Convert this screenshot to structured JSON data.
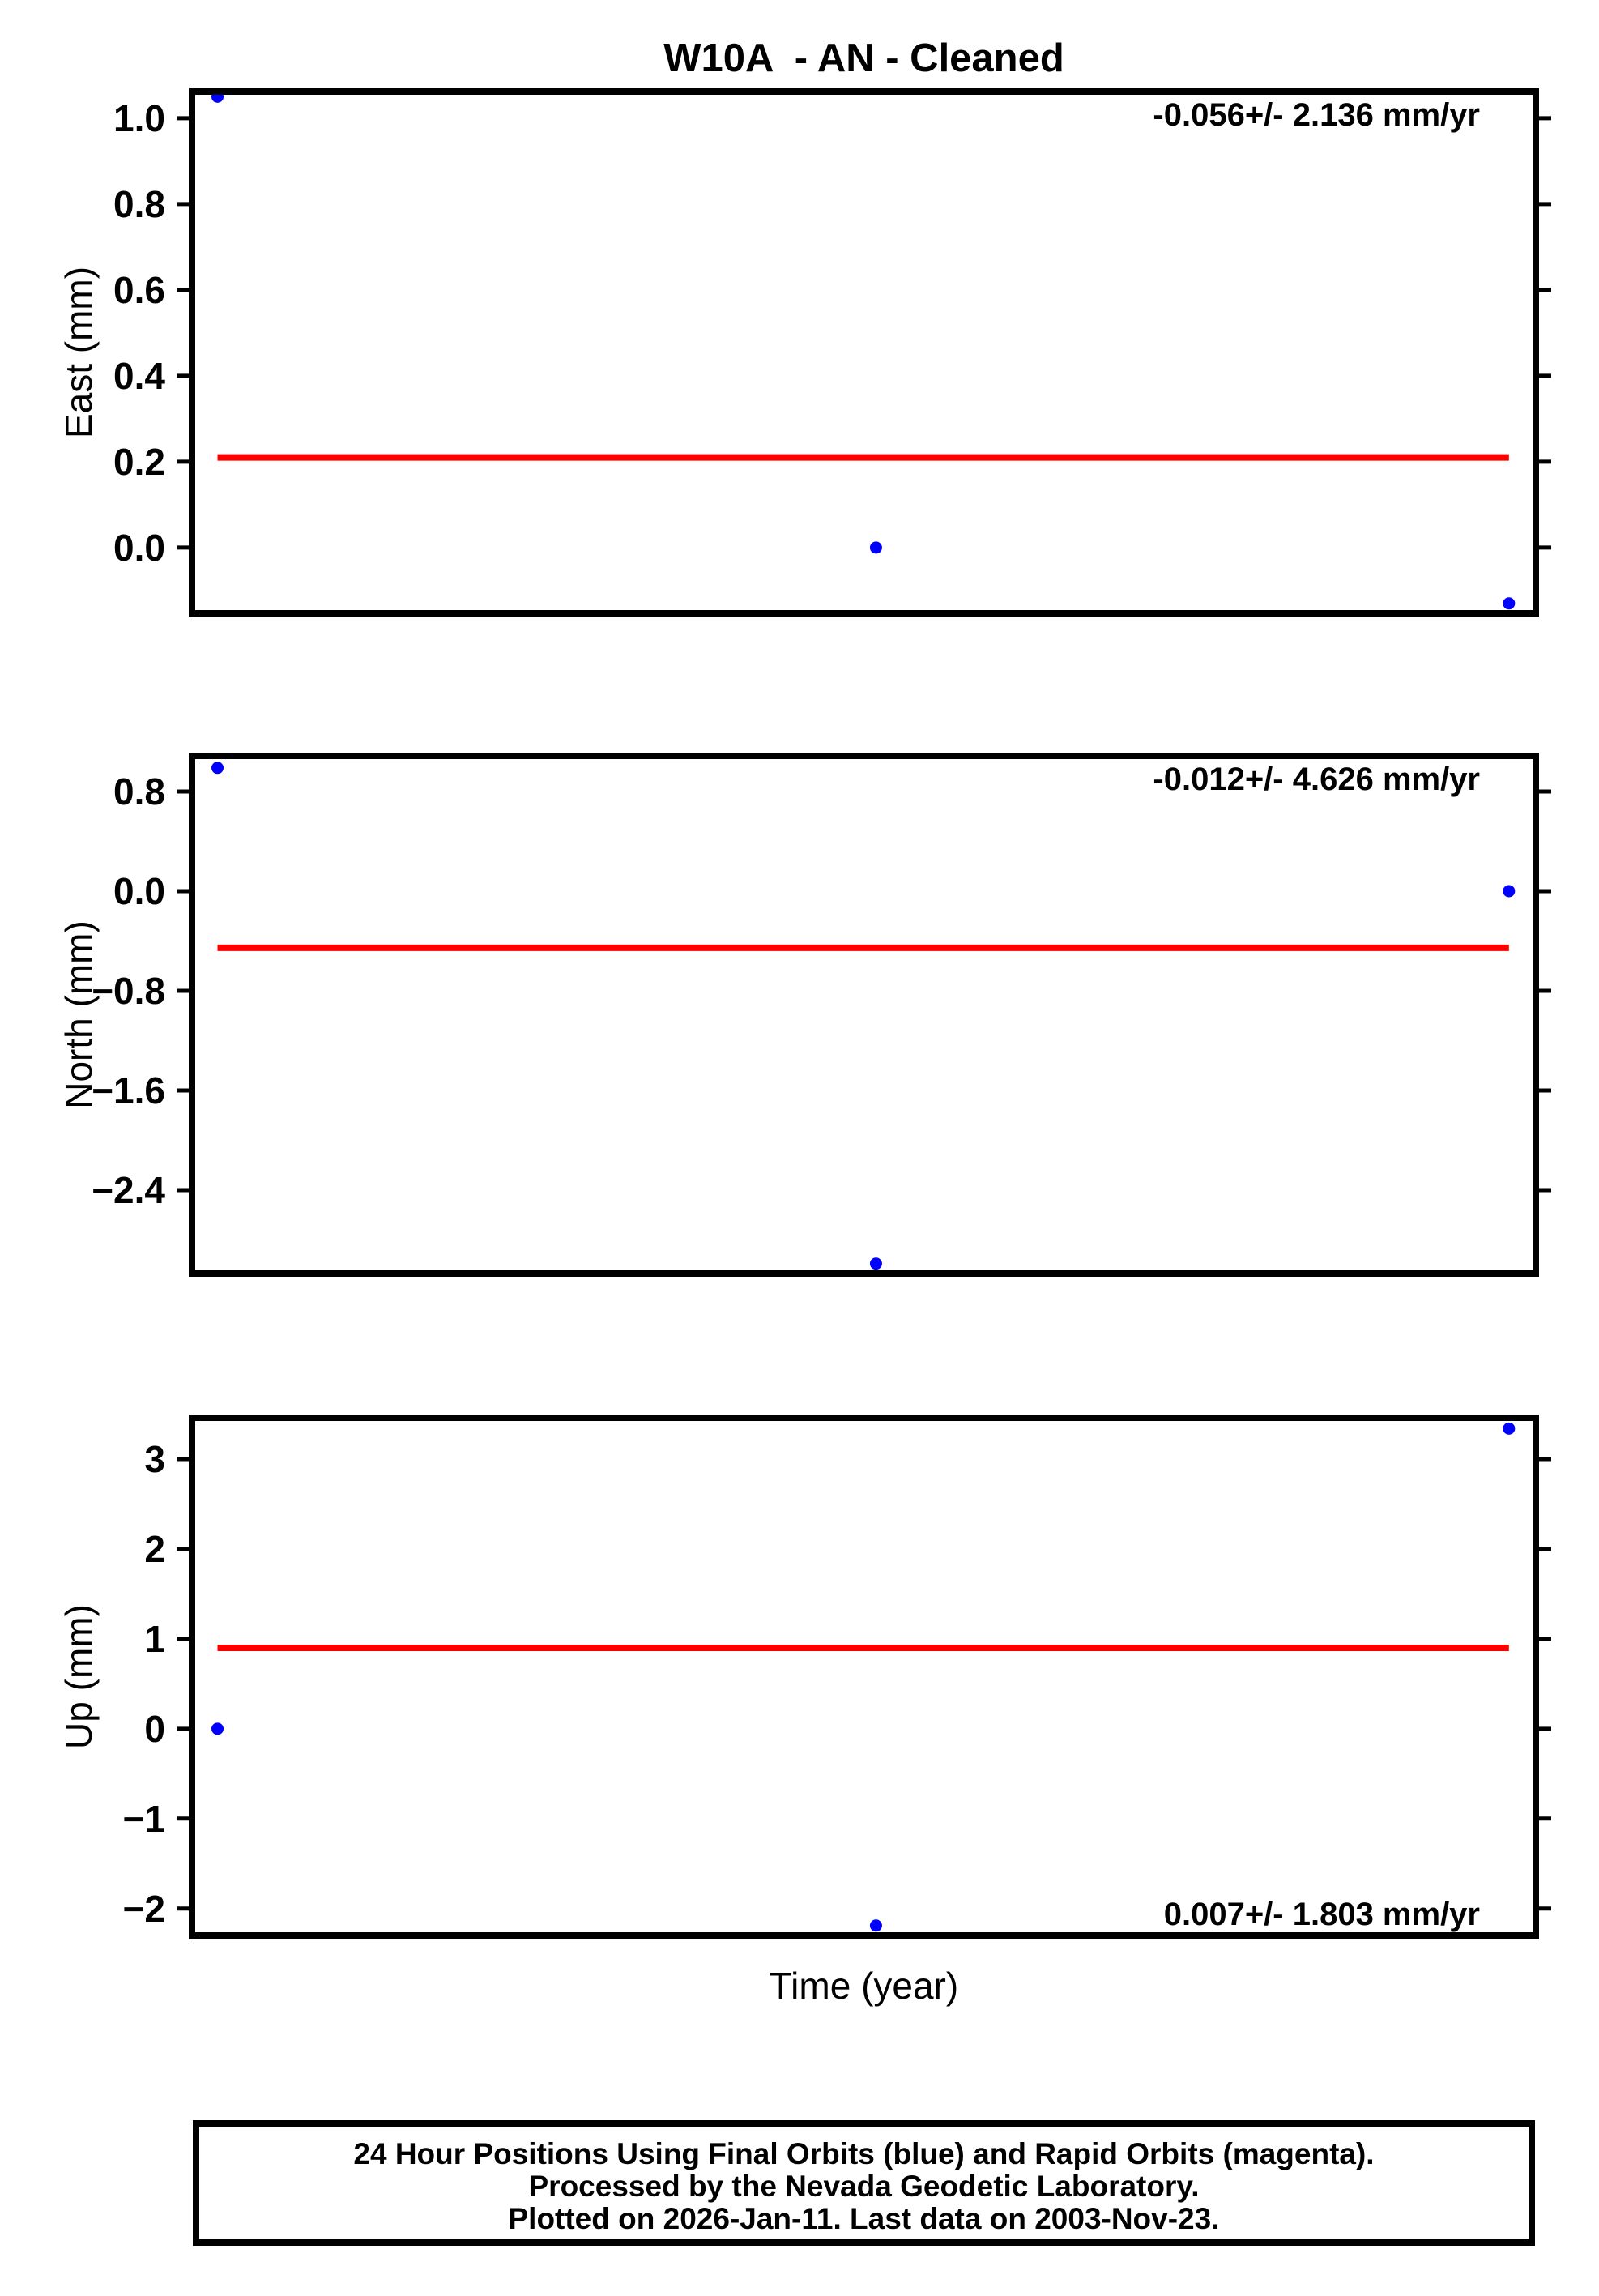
{
  "title": "W10A  - AN - Cleaned",
  "xlabel": "Time (year)",
  "colors": {
    "point_blue": "#0000ff",
    "trend_red": "#ff0000",
    "axis_black": "#000000",
    "background": "#ffffff"
  },
  "footer": {
    "lines": [
      "24 Hour Positions Using Final Orbits (blue) and Rapid Orbits (magenta).",
      "Processed by the Nevada Geodetic Laboratory.",
      "Plotted on 2026-Jan-11. Last data on 2003-Nov-23."
    ]
  },
  "chart_data": [
    {
      "type": "scatter",
      "ylabel": "East (mm)",
      "annotation": "-0.056+/- 2.136 mm/yr",
      "annotation_corner": "top-right",
      "ylim": [
        -0.153,
        1.062
      ],
      "yticks": [
        1.0,
        0.8,
        0.6,
        0.4,
        0.2,
        0.0
      ],
      "ytick_labels": [
        "1.0",
        "0.8",
        "0.6",
        "0.4",
        "0.2",
        "0.0"
      ],
      "grid": false,
      "trend": {
        "value": 0.21,
        "x_frac": [
          0.019,
          0.98
        ]
      },
      "points": [
        {
          "x_frac": 0.019,
          "y": 1.05
        },
        {
          "x_frac": 0.509,
          "y": 0.0
        },
        {
          "x_frac": 0.98,
          "y": -0.13
        }
      ]
    },
    {
      "type": "scatter",
      "ylabel": "North (mm)",
      "annotation": "-0.012+/- 4.626 mm/yr",
      "annotation_corner": "top-right",
      "ylim": [
        -3.07,
        1.086
      ],
      "yticks": [
        0.8,
        0.0,
        -0.8,
        -1.6,
        -2.4
      ],
      "ytick_labels": [
        "0.8",
        "0.0",
        "−0.8",
        "−1.6",
        "−2.4"
      ],
      "grid": false,
      "trend": {
        "value": -0.455,
        "x_frac": [
          0.019,
          0.98
        ]
      },
      "points": [
        {
          "x_frac": 0.019,
          "y": 0.99
        },
        {
          "x_frac": 0.509,
          "y": -2.99
        },
        {
          "x_frac": 0.98,
          "y": 0.0
        }
      ]
    },
    {
      "type": "scatter",
      "ylabel": "Up (mm)",
      "annotation": "0.007+/- 1.803 mm/yr",
      "annotation_corner": "bottom-right",
      "ylim": [
        -2.3,
        3.46
      ],
      "yticks": [
        3,
        2,
        1,
        0,
        -1,
        -2
      ],
      "ytick_labels": [
        "3",
        "2",
        "1",
        "0",
        "−1",
        "−2"
      ],
      "grid": false,
      "trend": {
        "value": 0.9,
        "x_frac": [
          0.019,
          0.98
        ]
      },
      "points": [
        {
          "x_frac": 0.019,
          "y": 0.0
        },
        {
          "x_frac": 0.509,
          "y": -2.19
        },
        {
          "x_frac": 0.98,
          "y": 3.34
        }
      ]
    }
  ]
}
